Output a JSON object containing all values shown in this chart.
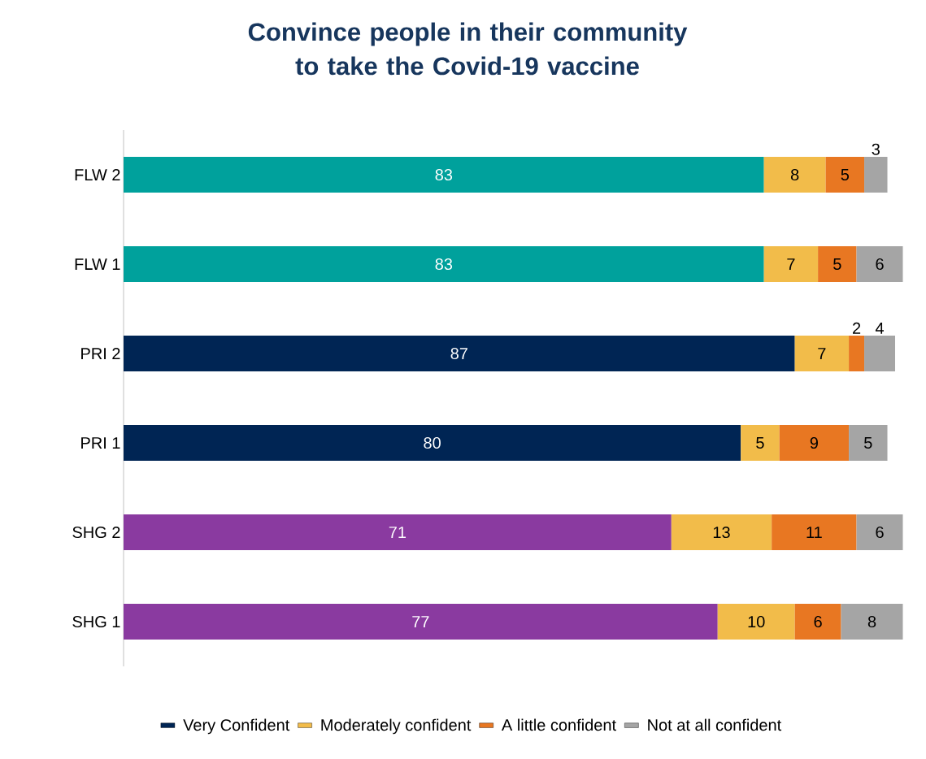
{
  "chart_data": {
    "type": "bar",
    "orientation": "horizontal",
    "stacked": true,
    "data_labels": true,
    "legend": "bottom",
    "title": "Convince people in their community to take the Covid-19 vaccine",
    "categories": [
      "FLW 2",
      "FLW 1",
      "PRI 2",
      "PRI 1",
      "SHG 2",
      "SHG 1"
    ],
    "series": [
      {
        "name": "Very Confident",
        "color": "#002554",
        "colors": [
          "#00a19c",
          "#00a19c",
          "#002554",
          "#002554",
          "#8a3aa0",
          "#8a3aa0"
        ],
        "values": [
          83,
          83,
          87,
          80,
          71,
          77
        ]
      },
      {
        "name": "Moderately confident",
        "color": "#f2bc4a",
        "values": [
          8,
          7,
          7,
          5,
          13,
          10
        ]
      },
      {
        "name": "A little confident",
        "color": "#e87722",
        "values": [
          5,
          5,
          2,
          9,
          11,
          6
        ]
      },
      {
        "name": "Not at all confident",
        "color": "#a5a5a5",
        "values": [
          3,
          6,
          4,
          5,
          6,
          8
        ]
      }
    ]
  }
}
